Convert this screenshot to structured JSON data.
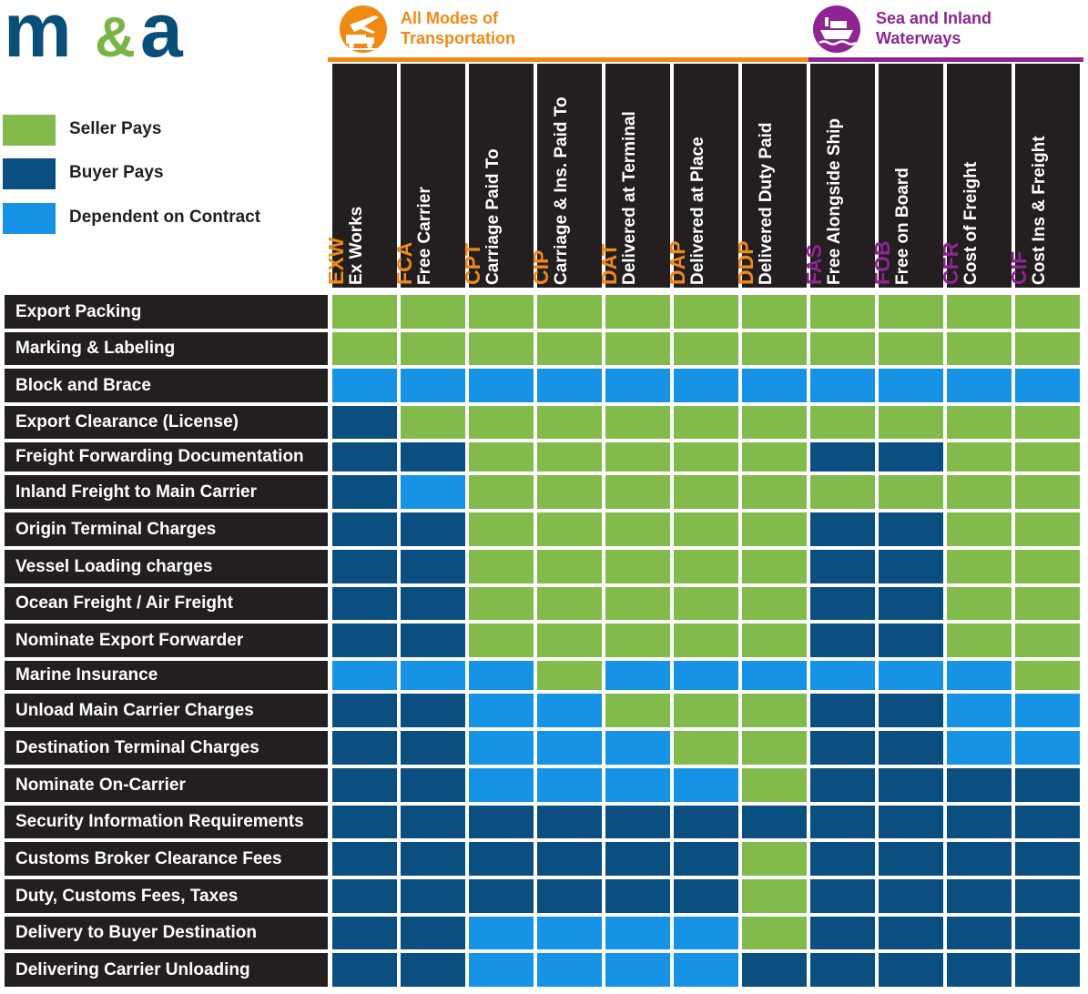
{
  "brand": {
    "logo_text_m": "m",
    "logo_text_amp": "&",
    "logo_text_a": "a"
  },
  "colors": {
    "seller": "#82bb4b",
    "buyer": "#0a4f80",
    "contract": "#1793e5",
    "dark": "#231f20",
    "orange": "#f08a14",
    "purple": "#8e2593",
    "logo_blue": "#0a4f7a",
    "logo_green": "#7ab543"
  },
  "legend": [
    {
      "key": "S",
      "label": "Seller Pays"
    },
    {
      "key": "B",
      "label": "Buyer Pays"
    },
    {
      "key": "C",
      "label": "Dependent on Contract"
    }
  ],
  "groups": [
    {
      "title_line1": "All Modes of",
      "title_line2": "Transportation",
      "icon": "truck-plane-icon"
    },
    {
      "title_line1": "Sea and Inland",
      "title_line2": "Waterways",
      "icon": "ship-icon"
    }
  ],
  "columns": [
    {
      "abbr": "EXW",
      "name": "Ex Works",
      "group": 0
    },
    {
      "abbr": "FCA",
      "name": "Free Carrier",
      "group": 0
    },
    {
      "abbr": "CPT",
      "name": "Carriage Paid To",
      "group": 0
    },
    {
      "abbr": "CIP",
      "name": "Carriage & Ins. Paid To",
      "group": 0
    },
    {
      "abbr": "DAT",
      "name": "Delivered at Terminal",
      "group": 0
    },
    {
      "abbr": "DAP",
      "name": "Delivered at Place",
      "group": 0
    },
    {
      "abbr": "DDP",
      "name": "Delivered Duty Paid",
      "group": 0
    },
    {
      "abbr": "FAS",
      "name": "Free Alongside Ship",
      "group": 1
    },
    {
      "abbr": "FOB",
      "name": "Free on Board",
      "group": 1
    },
    {
      "abbr": "CFR",
      "name": "Cost of Freight",
      "group": 1
    },
    {
      "abbr": "CIF",
      "name": "Cost Ins & Freight",
      "group": 1
    }
  ],
  "rows": [
    {
      "label": "Export Packing",
      "cells": "SSSSSSSSSSS"
    },
    {
      "label": "Marking & Labeling",
      "cells": "SSSSSSSSSSS"
    },
    {
      "label": "Block and Brace",
      "cells": "CCCCCCCCCCC"
    },
    {
      "label": "Export Clearance (License)",
      "cells": "BSSSSSSSSSS"
    },
    {
      "label": "Freight Forwarding Documentation",
      "cells": "BBSSSSSBBSS"
    },
    {
      "label": "Inland Freight to Main Carrier",
      "cells": "BCSSSSSSSSS"
    },
    {
      "label": "Origin Terminal Charges",
      "cells": "BBSSSSSBBSS"
    },
    {
      "label": "Vessel Loading charges",
      "cells": "BBSSSSSBBSS"
    },
    {
      "label": "Ocean Freight / Air Freight",
      "cells": "BBSSSSSBBSS"
    },
    {
      "label": "Nominate Export Forwarder",
      "cells": "BBSSSSSBBSS"
    },
    {
      "label": "Marine Insurance",
      "cells": "CCCSCCCCCCS"
    },
    {
      "label": "Unload Main Carrier Charges",
      "cells": "BBCCSSSBBCC"
    },
    {
      "label": "Destination Terminal Charges",
      "cells": "BBCCCSSBBCC"
    },
    {
      "label": "Nominate On-Carrier",
      "cells": "BBCCCCSBBBB"
    },
    {
      "label": "Security Information Requirements",
      "cells": "BBBBBBBBBBB"
    },
    {
      "label": "Customs Broker Clearance Fees",
      "cells": "BBBBBBSBBBB"
    },
    {
      "label": "Duty, Customs Fees, Taxes",
      "cells": "BBBBBBSBBBB"
    },
    {
      "label": "Delivery to Buyer Destination",
      "cells": "BBCCCCSBBBB"
    },
    {
      "label": "Delivering Carrier Unloading",
      "cells": "BBCCCCBBBBB"
    }
  ]
}
